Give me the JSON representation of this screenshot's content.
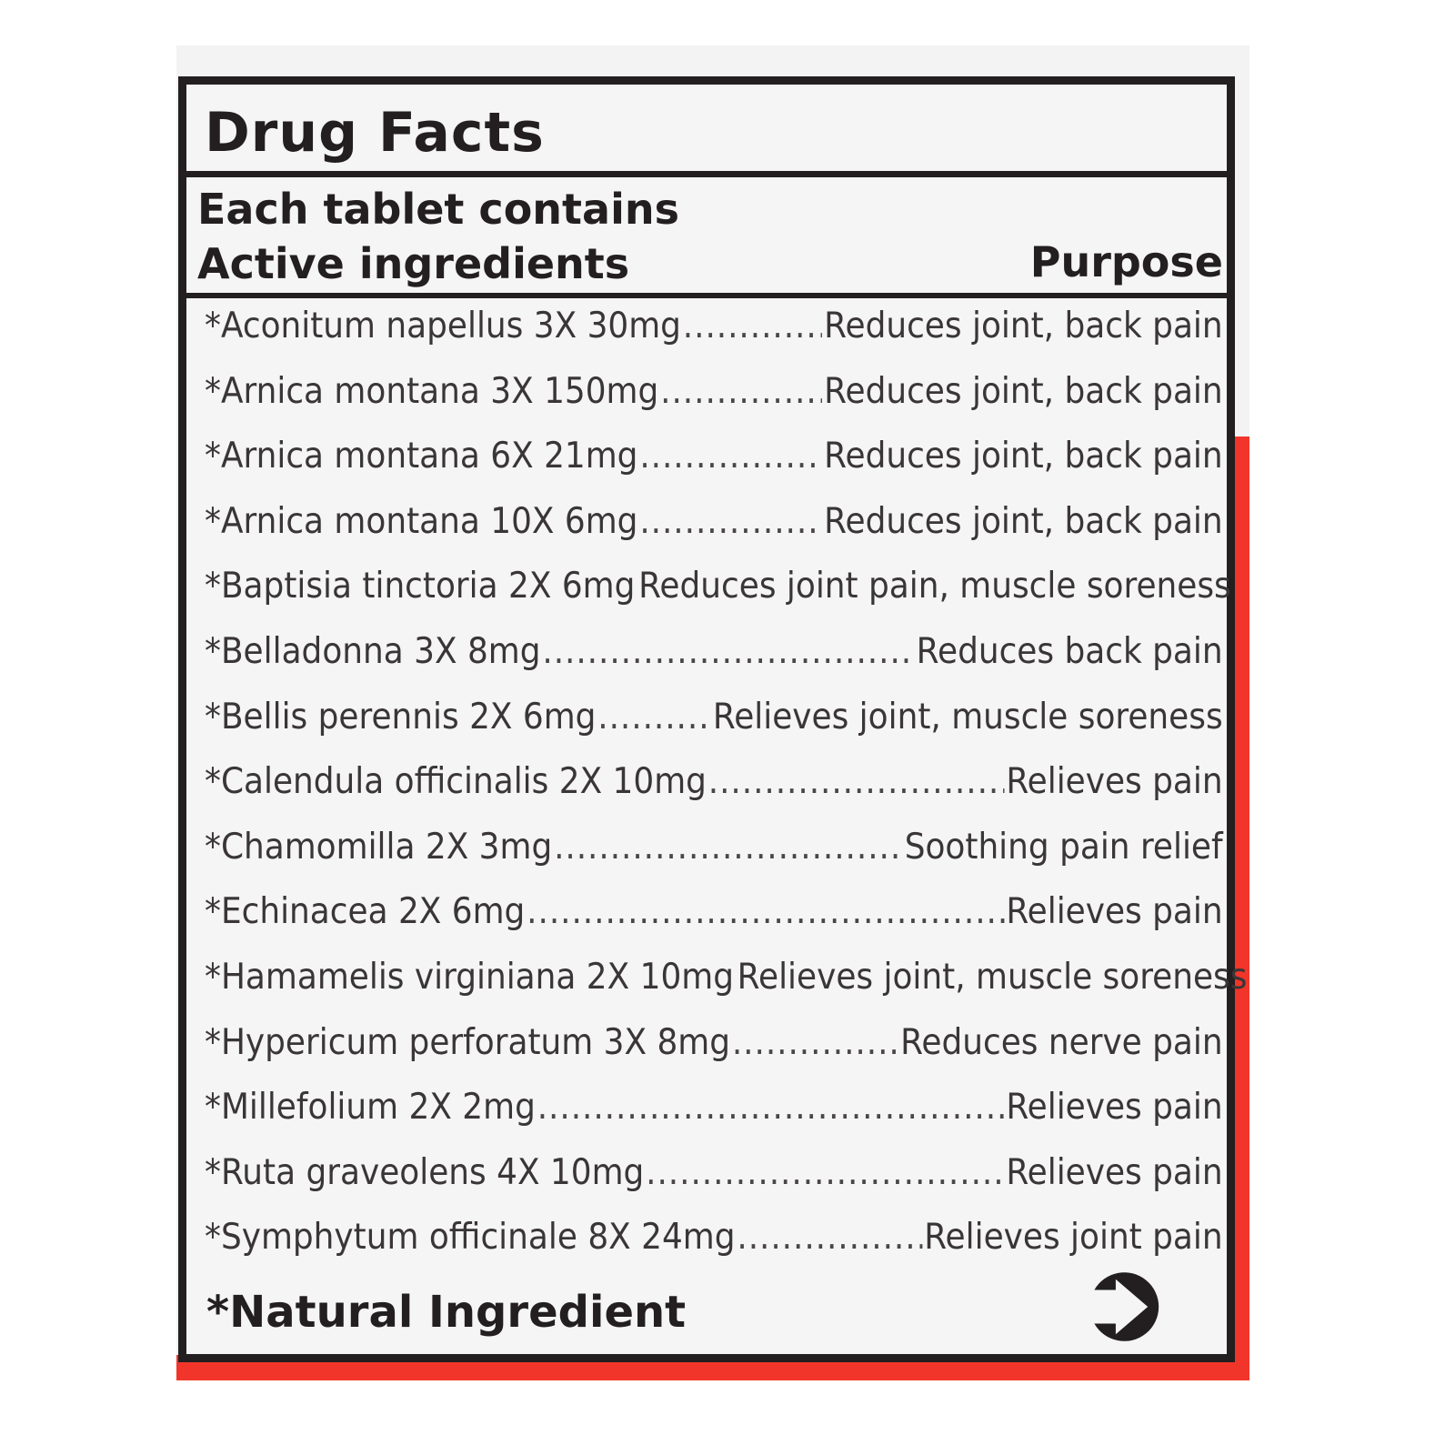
{
  "label": {
    "title": "Drug Facts",
    "subtitle": "Each tablet contains",
    "section_heading": "Active ingredients",
    "purpose_heading": "Purpose",
    "ingredients": [
      {
        "name": "*Aconitum napellus 3X 30mg",
        "purpose": "Reduces joint, back pain"
      },
      {
        "name": "*Arnica montana 3X 150mg",
        "purpose": "Reduces joint, back pain"
      },
      {
        "name": "*Arnica montana 6X 21mg",
        "purpose": "Reduces joint, back pain"
      },
      {
        "name": "*Arnica montana 10X 6mg",
        "purpose": "Reduces joint, back pain"
      },
      {
        "name": "*Baptisia tinctoria 2X 6mg",
        "purpose": "Reduces joint pain, muscle soreness"
      },
      {
        "name": "*Belladonna 3X 8mg",
        "purpose": "Reduces back pain"
      },
      {
        "name": "*Bellis perennis 2X 6mg",
        "purpose": "Relieves joint, muscle soreness"
      },
      {
        "name": "*Calendula officinalis 2X 10mg",
        "purpose": "Relieves pain"
      },
      {
        "name": "*Chamomilla 2X 3mg",
        "purpose": "Soothing pain relief"
      },
      {
        "name": "*Echinacea 2X 6mg",
        "purpose": "Relieves pain"
      },
      {
        "name": "*Hamamelis virginiana 2X 10mg",
        "purpose": "Relieves joint, muscle soreness"
      },
      {
        "name": "*Hypericum perforatum 3X 8mg",
        "purpose": "Reduces nerve pain"
      },
      {
        "name": "*Millefolium 2X 2mg",
        "purpose": "Relieves pain"
      },
      {
        "name": "*Ruta graveolens 4X 10mg",
        "purpose": "Relieves pain"
      },
      {
        "name": "*Symphytum officinale 8X 24mg",
        "purpose": "Relieves joint pain"
      }
    ],
    "footnote": "*Natural Ingredient",
    "continue_icon": "arrow-right-circle-icon"
  },
  "colors": {
    "accent_red": "#f2352a",
    "ink": "#231f20"
  }
}
